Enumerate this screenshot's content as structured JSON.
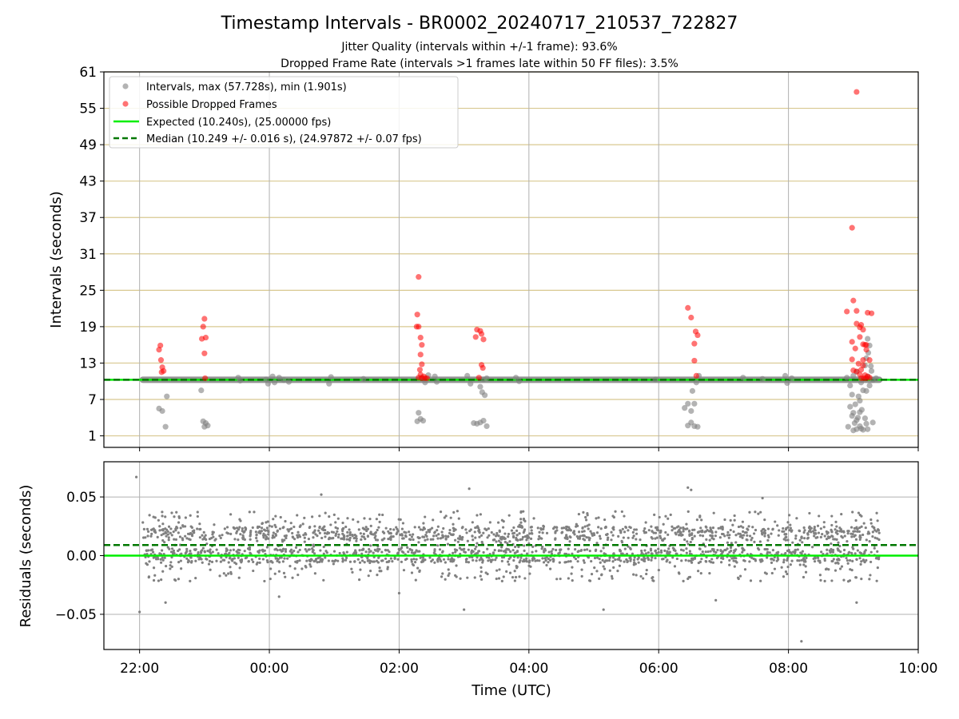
{
  "figure": {
    "title": "Timestamp Intervals - BR0002_20240717_210537_722827",
    "subtitle_1": "Jitter Quality (intervals within +/-1 frame): 93.6%",
    "subtitle_2": "Dropped Frame Rate (intervals >1 frames late within 50 FF files): 3.5%",
    "colors": {
      "intervals": "#808080",
      "dropped": "#ff0000",
      "expected": "#00ee00",
      "median": "#007700",
      "hgrid_top": "#d8c890",
      "grid": "#b0b0b0"
    }
  },
  "chart_data": [
    {
      "type": "scatter",
      "panel": "top",
      "ylabel": "Intervals (seconds)",
      "xlabel": "",
      "x_axis": "time (UTC), hours relative to 00:00 on 2024-07-18",
      "xlim": [
        -2.55,
        10.0
      ],
      "ylim": [
        -0.9,
        61
      ],
      "yticks": [
        "1",
        "7",
        "13",
        "19",
        "25",
        "31",
        "37",
        "43",
        "49",
        "55",
        "61"
      ],
      "grid": true,
      "legend_position": "upper-left",
      "legend": [
        "Intervals, max (57.728s), min (1.901s)",
        "Possible Dropped Frames",
        "Expected (10.240s), (25.00000 fps)",
        "Median (10.249 +/- 0.016 s), (24.97872 +/- 0.07 fps)"
      ],
      "baseline_range": {
        "x": [
          -1.95,
          9.4
        ],
        "y": 10.25
      },
      "lines": {
        "expected": 10.24,
        "median": 10.249
      },
      "series": [
        {
          "name": "Intervals, max (57.728s), min (1.901s)",
          "points": [
            [
              -0.48,
              10.6
            ],
            [
              -0.45,
              10.1
            ],
            [
              -0.05,
              10.3
            ],
            [
              -0.02,
              9.6
            ],
            [
              0.05,
              10.8
            ],
            [
              0.08,
              9.8
            ],
            [
              0.15,
              10.6
            ],
            [
              0.22,
              10.2
            ],
            [
              0.3,
              9.9
            ],
            [
              0.95,
              10.7
            ],
            [
              0.92,
              9.6
            ],
            [
              1.45,
              10.4
            ],
            [
              2.55,
              10.8
            ],
            [
              2.58,
              9.9
            ],
            [
              3.35,
              10.5
            ],
            [
              3.8,
              10.6
            ],
            [
              3.85,
              10.0
            ],
            [
              5.95,
              10.3
            ],
            [
              7.3,
              10.6
            ],
            [
              7.6,
              10.4
            ],
            [
              7.95,
              10.9
            ],
            [
              7.98,
              9.7
            ],
            [
              8.05,
              10.5
            ],
            [
              -1.7,
              5.5
            ],
            [
              -1.65,
              5.1
            ],
            [
              -1.6,
              2.5
            ],
            [
              -1.58,
              7.5
            ],
            [
              -1.05,
              8.5
            ],
            [
              -1.02,
              3.4
            ],
            [
              -0.98,
              3.1
            ],
            [
              -0.95,
              2.7
            ],
            [
              -1.0,
              2.5
            ],
            [
              2.3,
              4.8
            ],
            [
              2.33,
              3.8
            ],
            [
              2.28,
              3.4
            ],
            [
              2.37,
              3.5
            ],
            [
              2.4,
              9.8
            ],
            [
              2.35,
              10.6
            ],
            [
              2.45,
              11.0
            ],
            [
              3.05,
              10.9
            ],
            [
              3.1,
              9.6
            ],
            [
              3.15,
              3.1
            ],
            [
              3.2,
              3.0
            ],
            [
              3.25,
              3.2
            ],
            [
              3.3,
              3.5
            ],
            [
              3.35,
              2.6
            ],
            [
              3.28,
              8.2
            ],
            [
              3.32,
              7.7
            ],
            [
              3.25,
              9.1
            ],
            [
              3.3,
              10.3
            ],
            [
              6.4,
              5.6
            ],
            [
              6.45,
              6.3
            ],
            [
              6.52,
              8.4
            ],
            [
              6.55,
              6.3
            ],
            [
              6.5,
              5.1
            ],
            [
              6.45,
              2.7
            ],
            [
              6.5,
              3.2
            ],
            [
              6.55,
              2.6
            ],
            [
              6.6,
              2.5
            ],
            [
              6.62,
              10.9
            ],
            [
              6.58,
              9.8
            ],
            [
              8.92,
              2.5
            ],
            [
              8.95,
              5.8
            ],
            [
              8.98,
              4.3
            ],
            [
              9.0,
              4.8
            ],
            [
              9.02,
              3.1
            ],
            [
              9.05,
              3.6
            ],
            [
              9.07,
              4.0
            ],
            [
              9.1,
              2.6
            ],
            [
              9.12,
              2.2
            ],
            [
              9.15,
              2.0
            ],
            [
              9.0,
              1.9
            ],
            [
              9.05,
              2.1
            ],
            [
              9.2,
              3.0
            ],
            [
              9.22,
              2.1
            ],
            [
              9.18,
              3.9
            ],
            [
              9.13,
              5.3
            ],
            [
              9.1,
              6.8
            ],
            [
              9.08,
              7.5
            ],
            [
              9.15,
              8.5
            ],
            [
              9.2,
              8.4
            ],
            [
              9.12,
              9.8
            ],
            [
              9.25,
              9.3
            ],
            [
              9.22,
              10.8
            ],
            [
              9.28,
              11.7
            ],
            [
              9.27,
              12.5
            ],
            [
              9.2,
              13.8
            ],
            [
              9.23,
              14.7
            ],
            [
              9.25,
              15.9
            ],
            [
              9.22,
              17.0
            ],
            [
              9.18,
              12.6
            ],
            [
              9.0,
              10.9
            ],
            [
              9.05,
              11.6
            ],
            [
              8.95,
              9.3
            ],
            [
              8.9,
              10.6
            ],
            [
              9.3,
              10.2
            ],
            [
              9.35,
              10.5
            ],
            [
              8.98,
              7.8
            ],
            [
              9.03,
              6.2
            ],
            [
              9.3,
              3.2
            ],
            [
              9.1,
              4.9
            ]
          ]
        },
        {
          "name": "Possible Dropped Frames",
          "points": [
            [
              -1.68,
              15.9
            ],
            [
              -1.7,
              15.2
            ],
            [
              -1.67,
              13.5
            ],
            [
              -1.65,
              12.3
            ],
            [
              -1.63,
              11.7
            ],
            [
              -1.66,
              11.5
            ],
            [
              -1.0,
              20.3
            ],
            [
              -1.02,
              19.0
            ],
            [
              -1.04,
              17.0
            ],
            [
              -0.98,
              17.2
            ],
            [
              -1.0,
              14.6
            ],
            [
              -0.99,
              10.5
            ],
            [
              2.3,
              27.2
            ],
            [
              2.28,
              21.0
            ],
            [
              2.27,
              19.0
            ],
            [
              2.3,
              19.0
            ],
            [
              2.33,
              17.2
            ],
            [
              2.35,
              16.0
            ],
            [
              2.33,
              14.4
            ],
            [
              2.35,
              12.8
            ],
            [
              2.32,
              11.9
            ],
            [
              2.33,
              11.1
            ],
            [
              2.3,
              10.6
            ],
            [
              2.35,
              10.5
            ],
            [
              2.4,
              10.5
            ],
            [
              2.43,
              10.5
            ],
            [
              2.38,
              10.8
            ],
            [
              3.2,
              18.5
            ],
            [
              3.18,
              17.3
            ],
            [
              3.25,
              18.3
            ],
            [
              3.27,
              17.8
            ],
            [
              3.3,
              16.9
            ],
            [
              3.27,
              12.7
            ],
            [
              3.29,
              12.2
            ],
            [
              3.23,
              10.6
            ],
            [
              6.45,
              22.1
            ],
            [
              6.5,
              20.5
            ],
            [
              6.57,
              18.2
            ],
            [
              6.6,
              17.6
            ],
            [
              6.55,
              16.2
            ],
            [
              6.55,
              13.4
            ],
            [
              6.58,
              10.9
            ],
            [
              9.05,
              57.7
            ],
            [
              8.98,
              35.3
            ],
            [
              8.9,
              21.5
            ],
            [
              9.0,
              23.3
            ],
            [
              9.05,
              21.6
            ],
            [
              9.05,
              19.5
            ],
            [
              9.1,
              18.9
            ],
            [
              9.12,
              19.3
            ],
            [
              9.15,
              18.5
            ],
            [
              9.1,
              17.3
            ],
            [
              9.15,
              16.1
            ],
            [
              9.18,
              16.0
            ],
            [
              9.2,
              16.0
            ],
            [
              8.98,
              16.5
            ],
            [
              9.03,
              15.4
            ],
            [
              9.2,
              15.2
            ],
            [
              9.22,
              21.3
            ],
            [
              9.28,
              21.2
            ],
            [
              8.98,
              13.6
            ],
            [
              9.15,
              13.5
            ],
            [
              9.08,
              12.9
            ],
            [
              9.25,
              13.5
            ],
            [
              9.0,
              11.8
            ],
            [
              9.05,
              11.6
            ],
            [
              9.1,
              11.1
            ],
            [
              9.12,
              11.9
            ],
            [
              9.15,
              12.6
            ],
            [
              9.18,
              11.0
            ],
            [
              9.22,
              10.8
            ],
            [
              9.25,
              10.6
            ],
            [
              9.12,
              10.5
            ],
            [
              9.16,
              10.5
            ],
            [
              9.2,
              10.5
            ]
          ]
        }
      ]
    },
    {
      "type": "scatter",
      "panel": "bottom",
      "ylabel": "Residuals (seconds)",
      "xlabel": "Time (UTC)",
      "xlim": [
        -2.55,
        10.0
      ],
      "ylim": [
        -0.08,
        0.08
      ],
      "xticks": [
        {
          "value": -2,
          "label": "22:00"
        },
        {
          "value": 0,
          "label": "00:00"
        },
        {
          "value": 2,
          "label": "02:00"
        },
        {
          "value": 4,
          "label": "04:00"
        },
        {
          "value": 6,
          "label": "06:00"
        },
        {
          "value": 8,
          "label": "08:00"
        },
        {
          "value": 10,
          "label": "10:00"
        }
      ],
      "yticks": [
        {
          "value": 0.05,
          "label": "0.05"
        },
        {
          "value": 0.0,
          "label": "0.00"
        },
        {
          "value": -0.05,
          "label": "−0.05"
        }
      ],
      "grid": true,
      "lines": {
        "expected": 0.0,
        "median": 0.009
      },
      "residual_cloud": {
        "x_range": [
          -1.95,
          9.4
        ],
        "dense_band": [
          -0.022,
          0.038
        ],
        "approx_point_count": 2300
      },
      "outliers": [
        [
          -2.05,
          0.067
        ],
        [
          -2.0,
          -0.048
        ],
        [
          0.8,
          0.052
        ],
        [
          3.08,
          0.057
        ],
        [
          3.0,
          -0.046
        ],
        [
          5.15,
          -0.046
        ],
        [
          6.45,
          0.058
        ],
        [
          6.5,
          0.056
        ],
        [
          7.6,
          0.049
        ],
        [
          8.2,
          -0.073
        ],
        [
          9.05,
          -0.04
        ],
        [
          -1.6,
          -0.04
        ],
        [
          0.15,
          -0.035
        ],
        [
          6.88,
          -0.038
        ],
        [
          2.0,
          -0.032
        ]
      ]
    }
  ]
}
